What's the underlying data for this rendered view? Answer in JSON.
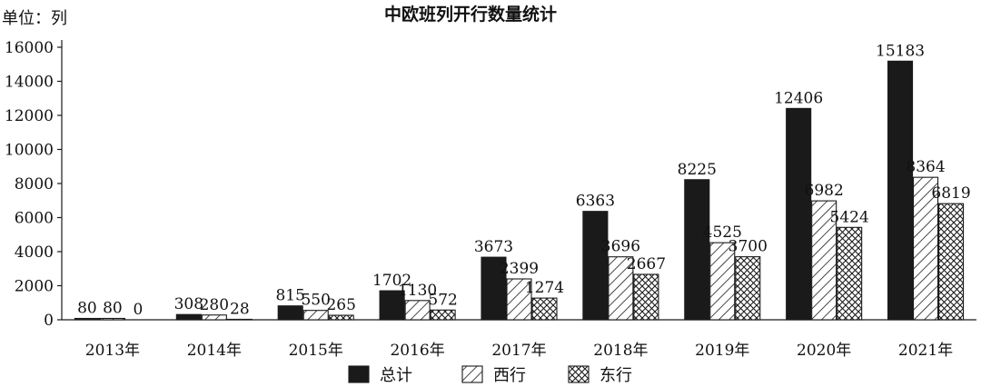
{
  "chart_data": {
    "type": "bar",
    "title": "中欧班列开行数量统计",
    "unit_label": "单位：列",
    "categories": [
      "2013年",
      "2014年",
      "2015年",
      "2016年",
      "2017年",
      "2018年",
      "2019年",
      "2020年",
      "2021年"
    ],
    "ylim": [
      0,
      16000
    ],
    "yticks": [
      "0",
      "2000",
      "4000",
      "6000",
      "8000",
      "10000",
      "12000",
      "14000",
      "16000"
    ],
    "grid": false,
    "legend_position": "bottom",
    "series": [
      {
        "name": "总计",
        "pattern": "solid",
        "values": [
          80,
          308,
          815,
          1702,
          3673,
          6363,
          8225,
          12406,
          15183
        ]
      },
      {
        "name": "西行",
        "pattern": "diagonal-hatch",
        "values": [
          80,
          280,
          550,
          1130,
          2399,
          3696,
          4525,
          6982,
          8364
        ]
      },
      {
        "name": "东行",
        "pattern": "cross-hatch",
        "values": [
          0,
          28,
          265,
          572,
          1274,
          2667,
          3700,
          5424,
          6819
        ]
      }
    ],
    "data_labels": [
      [
        "80",
        "308",
        "815",
        "1702",
        "3673",
        "6363",
        "8225",
        "12406",
        "15183"
      ],
      [
        "80",
        "280",
        "550",
        "1130",
        "2399",
        "3696",
        "4525",
        "6982",
        "8364"
      ],
      [
        "0",
        "28",
        "265",
        "572",
        "1274",
        "2667",
        "3700",
        "5424",
        "6819"
      ]
    ],
    "colors": {
      "ink": "#1a1a1a",
      "background": "#ffffff"
    }
  }
}
